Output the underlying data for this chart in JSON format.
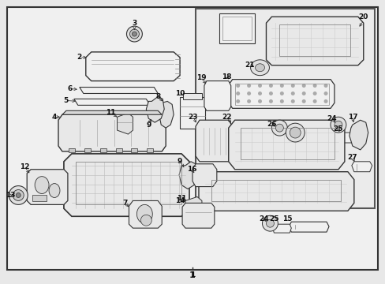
{
  "figsize": [
    4.89,
    3.6
  ],
  "dpi": 100,
  "bg_color": "#e8e8e8",
  "diagram_bg": "#f0f0f0",
  "border_color": "#000000",
  "inset_border_color": "#555555",
  "line_color": "#333333",
  "part_color": "#ffffff",
  "part_edge": "#333333",
  "label_fontsize": 6.5,
  "label_color": "#000000"
}
